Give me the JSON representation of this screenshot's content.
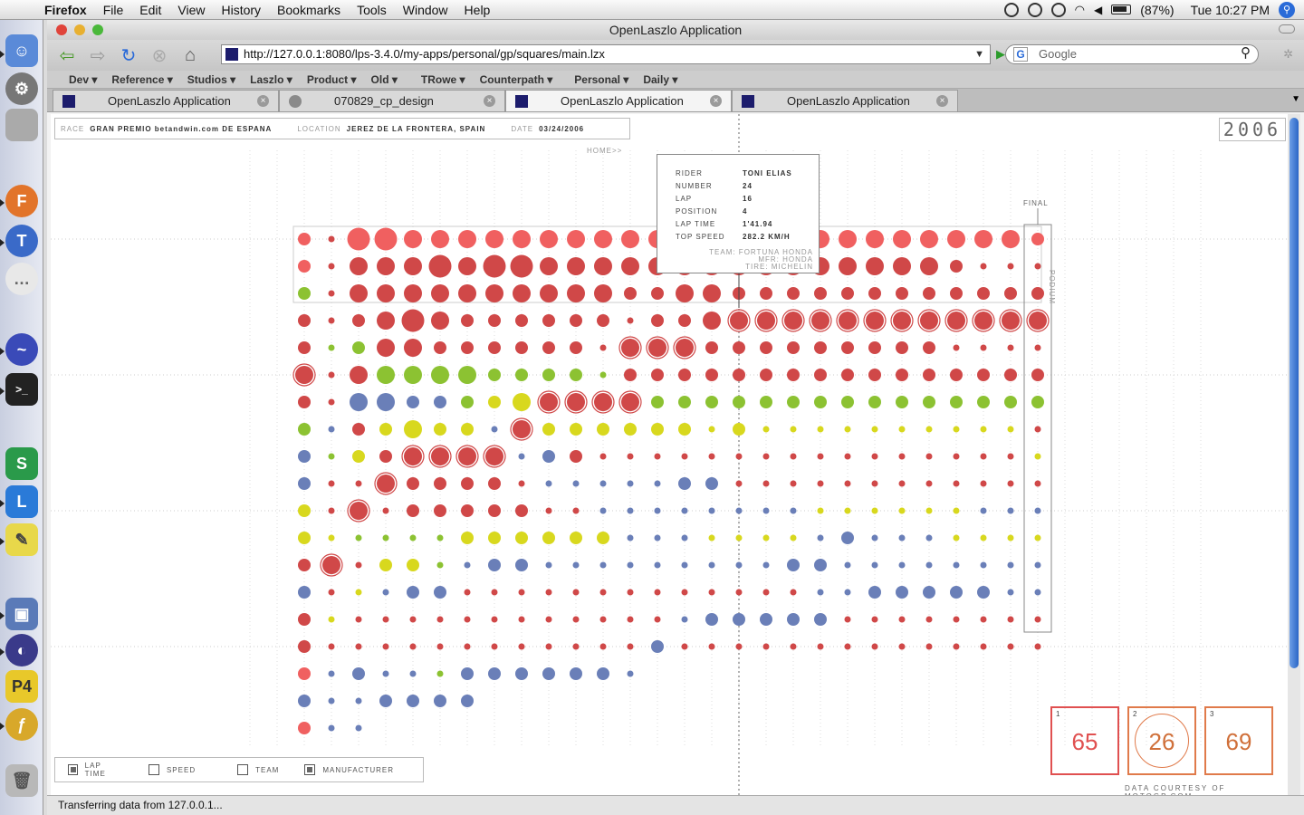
{
  "menubar": {
    "app": "Firefox",
    "items": [
      "File",
      "Edit",
      "View",
      "History",
      "Bookmarks",
      "Tools",
      "Window",
      "Help"
    ],
    "battery": "(87%)",
    "clock": "Tue 10:27 PM"
  },
  "window": {
    "title": "OpenLaszlo Application",
    "url": "http://127.0.0.1:8080/lps-3.4.0/my-apps/personal/gp/squares/main.lzx",
    "search_placeholder": "Google",
    "bookmarks": [
      "Dev ▾",
      "Reference ▾",
      "Studios ▾",
      "Laszlo ▾",
      "Product ▾",
      "Old ▾",
      "TRowe ▾",
      "Counterpath ▾",
      "Personal ▾",
      "Daily ▾"
    ],
    "tabs": [
      {
        "label": "OpenLaszlo Application",
        "active": false
      },
      {
        "label": "070829_cp_design",
        "active": false
      },
      {
        "label": "OpenLaszlo Application",
        "active": true
      },
      {
        "label": "OpenLaszlo Application",
        "active": false
      }
    ],
    "status": "Transferring data from 127.0.0.1..."
  },
  "race_info": {
    "race_label": "RACE",
    "race": "GRAN PREMIO betandwin.com DE ESPANA",
    "location_label": "LOCATION",
    "location": "JEREZ DE LA FRONTERA, SPAIN",
    "date_label": "DATE",
    "date": "03/24/2006",
    "home": "HOME>>",
    "year": "2006",
    "final": "FINAL",
    "podium": "PODIUM",
    "credit": "DATA COURTESY OF MOTOGP.COM"
  },
  "tooltip": {
    "rider_label": "RIDER",
    "rider": "TONI ELIAS",
    "number_label": "NUMBER",
    "number": "24",
    "lap_label": "LAP",
    "lap": "16",
    "position_label": "POSITION",
    "position": "4",
    "laptime_label": "LAP TIME",
    "laptime": "1'41.94",
    "topspeed_label": "TOP SPEED",
    "topspeed": "282.2 KM/H",
    "team": "TEAM: FORTUNA HONDA",
    "mfr": "MFR: HONDA",
    "tire": "TIRE: MICHELIN"
  },
  "legend": [
    {
      "label": "LAP TIME",
      "checked": true
    },
    {
      "label": "SPEED",
      "checked": false
    },
    {
      "label": "TEAM",
      "checked": false
    },
    {
      "label": "MANUFACTURER",
      "checked": true
    }
  ],
  "podium": [
    {
      "place": "1",
      "value": "65",
      "color": "#e05050"
    },
    {
      "place": "2",
      "value": "26",
      "color": "#d0703a"
    },
    {
      "place": "3",
      "value": "69",
      "color": "#d0703a"
    }
  ],
  "chart_data": {
    "type": "scatter",
    "laps": 28,
    "positions": 19,
    "colors": {
      "R": "#d04848",
      "L": "#f06060",
      "G": "#8cc232",
      "Y": "#d8d81e",
      "B": "#6a7fb8"
    },
    "rows": [
      "LS L L L L L L L L L L L L L L L L L L L L L L L L L L",
      "LS R R R R R R R R R R R R R R R R R R R R R R R S S S",
      "GS R R R R R R R R R R R R R R R R R R R R R R R R R R",
      "RS R R R R R R R R R R R R R R R R R R R R R R R R R R",
      "RG G R R R R R R R R R R R R R R R R R R R R R R R R R",
      "RR R G G G G G G G G G R R R R R R R R R R R R R R R R",
      "RR B B B B G Y Y R R R R G G G G G G G G G G G G G G G",
      "GB R Y Y Y Y B R Y Y Y Y Y Y Y Y Y Y Y Y Y Y Y Y Y Y R",
      "BG Y R R R R R B B R R R R R R R R R R R R R R R R R Y",
      "BR R R R R R R R B B B B B B B R R R R R R R R R R R R",
      "YR R R R R R R R R R B B B B B B B B Y Y Y Y Y Y B B B",
      "YY G G G G Y Y Y Y Y Y B B B Y Y Y Y B B B B B Y Y Y Y",
      "RR R Y Y G B B B B B B B B B B B B B B B B B B B B B B",
      "BR Y B B B R R R R R R R R R R R R R B B B B B B B B B",
      "RY R R R R R R R R R R R R B B B B B B R R R R R R R R",
      "RR R R R R R R R R R R R B R R R R R R R R R R R R R R",
      "LB B B B G B B B B B B B",
      "BB B B B B B",
      "LB B"
    ],
    "sizes": [
      "2 1 4 4 3 3 3 3 3 3 3 3 3 3 3 3 3 3 3 3 3 3 3 3 3 3 3 2",
      "2 1 3 3 3 4 3 4 4 3 3 3 3 3 3 3 3 3 3 3 3 3 3 3 2 1 1 1",
      "2 1 3 3 3 3 3 3 3 3 3 3 2 2 3 3 2 2 2 2 2 2 2 2 2 2 2 2",
      "2 1 2 3 4 3 2 2 2 2 2 2 1 2 2 3 3 3 3 3 3 3 3 3 3 3 3 3",
      "2 1 2 3 3 2 2 2 2 2 2 1 3 3 3 2 2 2 2 2 2 2 2 2 1 1 1 1",
      "3 1 3 3 3 3 3 2 2 2 2 1 2 2 2 2 2 2 2 2 2 2 2 2 2 2 2 2",
      "2 1 3 3 2 2 2 2 3 3 3 3 1 2 2 2 2 2 2 2 2 2 2 2 2 2 2 2",
      "2 1 2 2 3 2 2 1 3 2 2 2 2 2 2 1 2 1 1 1 1 1 1 1 1 1 1 1",
      "2 1 2 2 3 3 3 3 1 2 2 1 1 1 1 1 1 1 1 1 1 1 1 1 1 1 1 1",
      "2 1 1 3 2 2 2 2 1 1 1 1 1 1 2 2 1 1 1 1 1 1 1 1 1 1 1 1",
      "2 1 2 1 2 2 2 2 2 1 1 1 1 1 1 1 1 1 1 1 1 1 1 1 1 1 1 1",
      "2 1 1 1 1 1 2 2 2 2 2 2 1 1 1 1 1 1 1 1 2 1 1 1 1 1 1 1",
      "2 2 1 2 2 1 1 2 2 1 1 1 1 1 1 1 1 1 2 2 1 1 1 1 1 1 1 1",
      "2 1 1 1 2 2 1 1 1 1 1 1 1 1 1 1 1 1 1 1 1 2 2 2 2 2 1 1",
      "2 1 1 1 1 1 1 1 1 1 1 1 1 1 1 2 2 2 2 2 1 1 1 1 1 1 1 1",
      "2 1 1 1 1 1 1 1 1 1 1 1 1 2 1 1 1 1 1 1 1 1 1 1 1 1 1 1",
      "2 1 2 1 1 1 2 2 2 2 2 2",
      "2 1 1 2 2 2 2",
      "2 1 1"
    ],
    "ringed": [
      [
        5,
        0
      ],
      [
        4,
        12
      ],
      [
        4,
        13
      ],
      [
        4,
        14
      ],
      [
        3,
        16
      ],
      [
        3,
        17
      ],
      [
        3,
        18
      ],
      [
        3,
        19
      ],
      [
        3,
        20
      ],
      [
        3,
        21
      ],
      [
        3,
        22
      ],
      [
        3,
        23
      ],
      [
        3,
        24
      ],
      [
        3,
        25
      ],
      [
        3,
        26
      ],
      [
        3,
        27
      ],
      [
        6,
        9
      ],
      [
        6,
        10
      ],
      [
        6,
        11
      ],
      [
        6,
        12
      ],
      [
        7,
        8
      ],
      [
        8,
        4
      ],
      [
        8,
        5
      ],
      [
        8,
        6
      ],
      [
        8,
        7
      ],
      [
        9,
        3
      ],
      [
        10,
        2
      ],
      [
        12,
        1
      ]
    ],
    "selected_lap": 16,
    "selected_position": 4,
    "final_lap": 27
  }
}
